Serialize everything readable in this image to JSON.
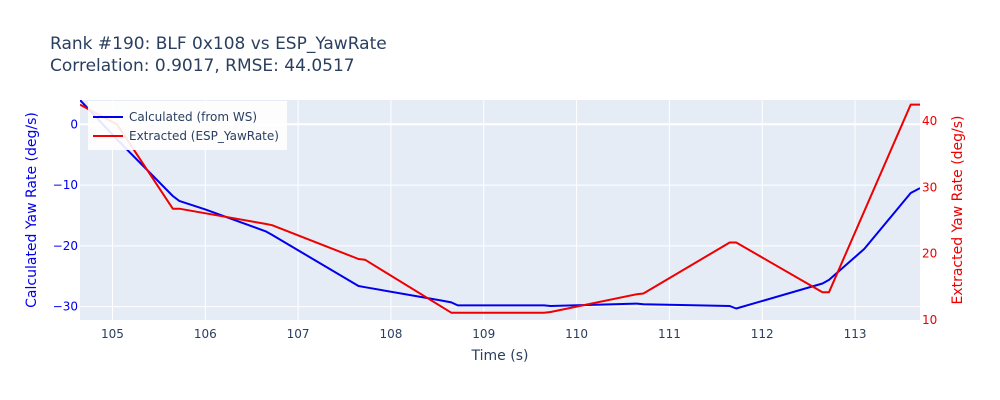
{
  "chart_data": {
    "type": "line",
    "title_line1": "Rank #190: BLF 0x108 vs ESP_YawRate",
    "title_line2": "Correlation: 0.9017, RMSE: 44.0517",
    "xlabel": "Time (s)",
    "ylabel_left": "Calculated Yaw Rate (deg/s)",
    "ylabel_right": "Extracted Yaw Rate (deg/s)",
    "xlim": [
      104.65,
      113.7
    ],
    "ylim_left": [
      -32.2,
      4.0
    ],
    "ylim_right": [
      10,
      43.2
    ],
    "x_ticks": [
      "105",
      "106",
      "107",
      "108",
      "109",
      "110",
      "111",
      "112",
      "113"
    ],
    "y_left_ticks": [
      "0",
      "−10",
      "−20",
      "−30"
    ],
    "y_right_ticks": [
      "10",
      "20",
      "30",
      "40"
    ],
    "grid": true,
    "legend_position": "top-left",
    "colors": {
      "calculated": "#0000ee",
      "extracted": "#ee0000",
      "plot_bg": "#e5ecf6",
      "grid": "#ffffff",
      "text": "#2a3f5f"
    },
    "series": [
      {
        "name": "Calculated (from WS)",
        "axis": "left",
        "color": "#0000ee",
        "x": [
          104.65,
          105.05,
          105.65,
          105.72,
          106.0,
          106.65,
          106.72,
          107.65,
          107.72,
          108.55,
          108.65,
          108.72,
          109.65,
          109.72,
          110.65,
          110.72,
          111.65,
          111.72,
          112.65,
          112.72,
          113.1,
          113.6,
          113.7
        ],
        "y": [
          4.0,
          -2.5,
          -11.8,
          -12.6,
          -14.0,
          -17.6,
          -18.2,
          -26.6,
          -26.8,
          -29.0,
          -29.3,
          -29.8,
          -29.8,
          -29.9,
          -29.5,
          -29.6,
          -29.9,
          -30.3,
          -26.2,
          -25.6,
          -20.5,
          -11.3,
          -10.5
        ]
      },
      {
        "name": "Extracted (ESP_YawRate)",
        "axis": "right",
        "color": "#ee0000",
        "x": [
          104.65,
          105.05,
          105.65,
          105.72,
          106.65,
          106.72,
          107.65,
          107.72,
          108.65,
          108.72,
          109.65,
          109.72,
          110.65,
          110.72,
          111.65,
          111.72,
          112.65,
          112.72,
          113.6,
          113.7
        ],
        "y": [
          42.5,
          39.5,
          26.8,
          26.8,
          24.5,
          24.3,
          19.2,
          19.1,
          11.1,
          11.1,
          11.1,
          11.2,
          13.9,
          14.0,
          21.7,
          21.7,
          14.2,
          14.2,
          42.5,
          42.5
        ]
      }
    ]
  }
}
